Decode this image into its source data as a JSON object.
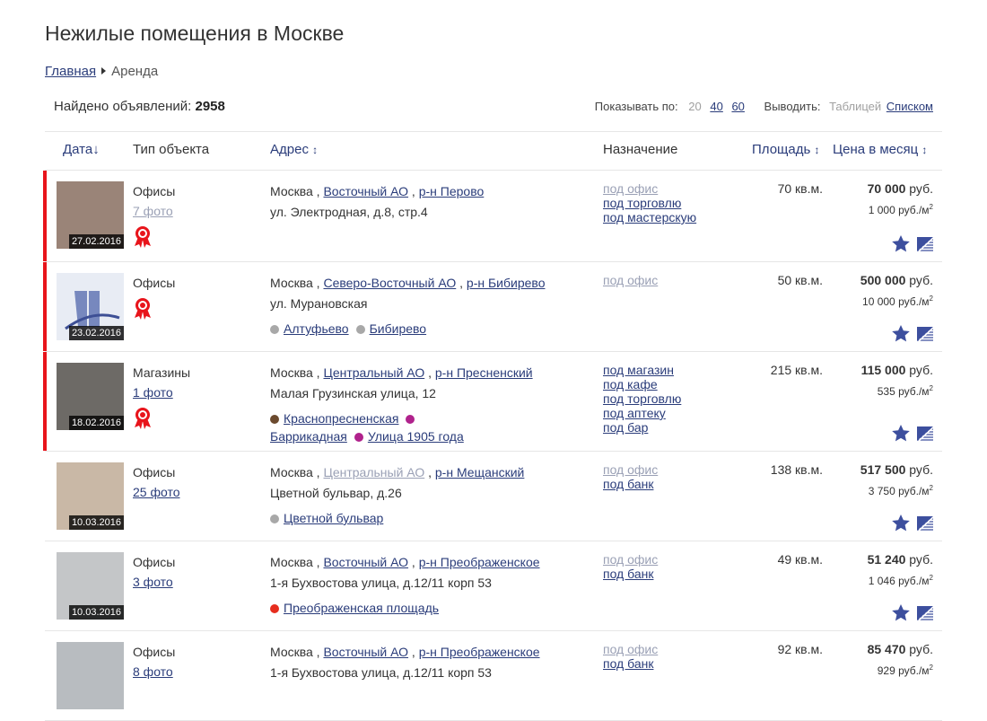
{
  "page": {
    "title": "Нежилые помещения в Москве"
  },
  "breadcrumb": {
    "home": "Главная",
    "current": "Аренда"
  },
  "summary": {
    "found_label": "Найдено объявлений:",
    "found_count": "2958"
  },
  "options": {
    "show_label": "Показывать по:",
    "per_page": [
      "20",
      "40",
      "60"
    ],
    "per_page_selected": "20",
    "view_label": "Выводить:",
    "view_table": "Таблицей",
    "view_list": "Списком",
    "view_selected": "Таблицей"
  },
  "columns": {
    "date": "Дата",
    "date_sort": "↓",
    "type": "Тип объекта",
    "address": "Адрес",
    "address_sort": "↕",
    "purpose": "Назначение",
    "area": "Площадь",
    "area_sort": "↕",
    "price": "Цена в месяц",
    "price_sort": "↕"
  },
  "colors": {
    "accent": "#2a3c7a",
    "highlight": "#e8141b"
  },
  "listings": [
    {
      "date": "27.02.2016",
      "highlight": true,
      "type": "Офисы",
      "photos": "7 фото",
      "photos_visited": true,
      "award": true,
      "city": "Москва",
      "district": "Восточный АО",
      "district_visited": false,
      "area_name": "р-н Перово",
      "street": "ул. Электродная, д.8, стр.4",
      "metro": [],
      "purposes": [
        "под офис",
        "под торговлю",
        "под мастерскую"
      ],
      "area": "70 кв.м.",
      "price": "70 000",
      "currency": "руб.",
      "price_per_m": "1 000 руб./м",
      "thumb": "#9a8478"
    },
    {
      "date": "23.02.2016",
      "highlight": true,
      "type": "Офисы",
      "photos": "",
      "award": true,
      "city": "Москва",
      "district": "Северо-Восточный АО",
      "area_name": "р-н Бибирево",
      "street": "ул. Мурановская",
      "metro": [
        {
          "name": "Алтуфьево",
          "color": "#a8a8a8"
        },
        {
          "name": "Бибирево",
          "color": "#a8a8a8"
        }
      ],
      "purposes": [
        "под офис"
      ],
      "area": "50 кв.м.",
      "price": "500 000",
      "currency": "руб.",
      "price_per_m": "10 000 руб./м",
      "thumb": "#e8ecf4"
    },
    {
      "date": "18.02.2016",
      "highlight": true,
      "type": "Магазины",
      "photos": "1 фото",
      "award": true,
      "city": "Москва",
      "district": "Центральный АО",
      "area_name": "р-н Пресненский",
      "street": "Малая Грузинская улица, 12",
      "metro": [
        {
          "name": "Краснопресненская",
          "color": "#6b4a2e"
        },
        {
          "name": "Баррикадная",
          "color": "#b0228c"
        },
        {
          "name": "Улица 1905 года",
          "color": "#b0228c"
        }
      ],
      "purposes": [
        "под магазин",
        "под кафе",
        "под торговлю",
        "под аптеку",
        "под бар"
      ],
      "area": "215 кв.м.",
      "price": "115 000",
      "currency": "руб.",
      "price_per_m": "535 руб./м",
      "thumb": "#6d6a66"
    },
    {
      "date": "10.03.2016",
      "highlight": false,
      "type": "Офисы",
      "photos": "25 фото",
      "award": false,
      "city": "Москва",
      "district": "Центральный АО",
      "district_visited": true,
      "area_name": "р-н Мещанский",
      "street": "Цветной бульвар, д.26",
      "metro": [
        {
          "name": "Цветной бульвар",
          "color": "#a8a8a8"
        }
      ],
      "purposes": [
        "под офис",
        "под банк"
      ],
      "area": "138 кв.м.",
      "price": "517 500",
      "currency": "руб.",
      "price_per_m": "3 750 руб./м",
      "thumb": "#c9b8a6"
    },
    {
      "date": "10.03.2016",
      "highlight": false,
      "type": "Офисы",
      "photos": "3 фото",
      "award": false,
      "city": "Москва",
      "district": "Восточный АО",
      "area_name": "р-н Преображенское",
      "street": "1-я Бухвостова улица, д.12/11 корп 53",
      "metro": [
        {
          "name": "Преображенская площадь",
          "color": "#e62d1e"
        }
      ],
      "purposes": [
        "под офис",
        "под банк"
      ],
      "area": "49 кв.м.",
      "price": "51 240",
      "currency": "руб.",
      "price_per_m": "1 046 руб./м",
      "thumb": "#c4c6c8"
    },
    {
      "date": "",
      "highlight": false,
      "type": "Офисы",
      "photos": "8 фото",
      "award": false,
      "city": "Москва",
      "district": "Восточный АО",
      "area_name": "р-н Преображенское",
      "street": "1-я Бухвостова улица, д.12/11 корп 53",
      "metro": [],
      "purposes": [
        "под офис",
        "под банк"
      ],
      "area": "92 кв.м.",
      "price": "85 470",
      "currency": "руб.",
      "price_per_m": "929 руб./м",
      "thumb": "#b8bcc0"
    }
  ]
}
